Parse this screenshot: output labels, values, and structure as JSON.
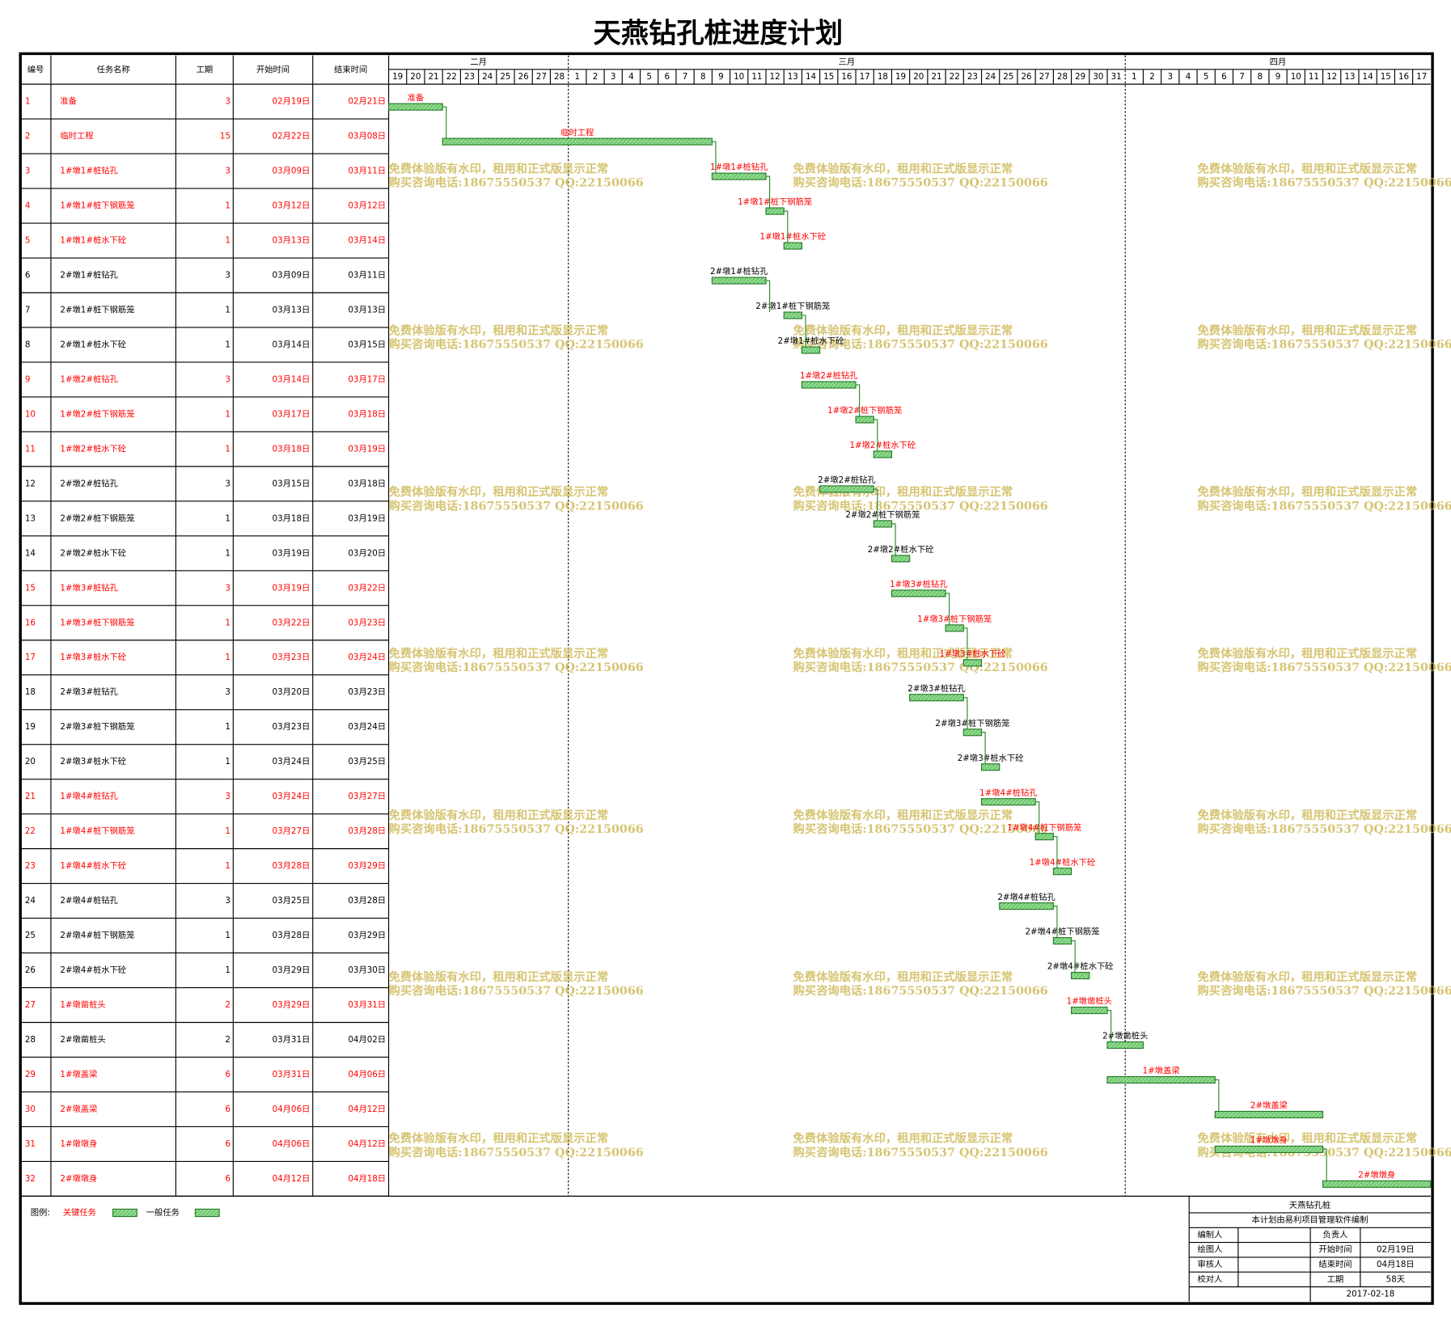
{
  "title": "天燕钻孔桩进度计划",
  "table_header": {
    "number": "编号",
    "name": "任务名称",
    "duration": "工期",
    "start": "开始时间",
    "end": "结束时间"
  },
  "timeline": {
    "months": [
      {
        "label": "二月",
        "days": [
          19,
          20,
          21,
          22,
          23,
          24,
          25,
          26,
          27,
          28
        ]
      },
      {
        "label": "三月",
        "days": [
          1,
          2,
          3,
          4,
          5,
          6,
          7,
          8,
          9,
          10,
          11,
          12,
          13,
          14,
          15,
          16,
          17,
          18,
          19,
          20,
          21,
          22,
          23,
          24,
          25,
          26,
          27,
          28,
          29,
          30,
          31
        ]
      },
      {
        "label": "四月",
        "days": [
          1,
          2,
          3,
          4,
          5,
          6,
          7,
          8,
          9,
          10,
          11,
          12,
          13,
          14,
          15,
          16,
          17
        ]
      }
    ]
  },
  "tasks": [
    {
      "number": 1,
      "name": "准备",
      "duration": 3,
      "start": "02月19日",
      "end": "02月21日",
      "critical": true
    },
    {
      "number": 2,
      "name": "临时工程",
      "duration": 15,
      "start": "02月22日",
      "end": "03月08日",
      "critical": true
    },
    {
      "number": 3,
      "name": "1#墩1#桩钻孔",
      "duration": 3,
      "start": "03月09日",
      "end": "03月11日",
      "critical": true
    },
    {
      "number": 4,
      "name": "1#墩1#桩下钢筋笼",
      "duration": 1,
      "start": "03月12日",
      "end": "03月12日",
      "critical": true
    },
    {
      "number": 5,
      "name": "1#墩1#桩水下砼",
      "duration": 1,
      "start": "03月13日",
      "end": "03月14日",
      "critical": true
    },
    {
      "number": 6,
      "name": "2#墩1#桩钻孔",
      "duration": 3,
      "start": "03月09日",
      "end": "03月11日",
      "critical": false
    },
    {
      "number": 7,
      "name": "2#墩1#桩下钢筋笼",
      "duration": 1,
      "start": "03月13日",
      "end": "03月13日",
      "critical": false
    },
    {
      "number": 8,
      "name": "2#墩1#桩水下砼",
      "duration": 1,
      "start": "03月14日",
      "end": "03月15日",
      "critical": false
    },
    {
      "number": 9,
      "name": "1#墩2#桩钻孔",
      "duration": 3,
      "start": "03月14日",
      "end": "03月17日",
      "critical": true
    },
    {
      "number": 10,
      "name": "1#墩2#桩下钢筋笼",
      "duration": 1,
      "start": "03月17日",
      "end": "03月18日",
      "critical": true
    },
    {
      "number": 11,
      "name": "1#墩2#桩水下砼",
      "duration": 1,
      "start": "03月18日",
      "end": "03月19日",
      "critical": true
    },
    {
      "number": 12,
      "name": "2#墩2#桩钻孔",
      "duration": 3,
      "start": "03月15日",
      "end": "03月18日",
      "critical": false
    },
    {
      "number": 13,
      "name": "2#墩2#桩下钢筋笼",
      "duration": 1,
      "start": "03月18日",
      "end": "03月19日",
      "critical": false
    },
    {
      "number": 14,
      "name": "2#墩2#桩水下砼",
      "duration": 1,
      "start": "03月19日",
      "end": "03月20日",
      "critical": false
    },
    {
      "number": 15,
      "name": "1#墩3#桩钻孔",
      "duration": 3,
      "start": "03月19日",
      "end": "03月22日",
      "critical": true
    },
    {
      "number": 16,
      "name": "1#墩3#桩下钢筋笼",
      "duration": 1,
      "start": "03月22日",
      "end": "03月23日",
      "critical": true
    },
    {
      "number": 17,
      "name": "1#墩3#桩水下砼",
      "duration": 1,
      "start": "03月23日",
      "end": "03月24日",
      "critical": true
    },
    {
      "number": 18,
      "name": "2#墩3#桩钻孔",
      "duration": 3,
      "start": "03月20日",
      "end": "03月23日",
      "critical": false
    },
    {
      "number": 19,
      "name": "2#墩3#桩下钢筋笼",
      "duration": 1,
      "start": "03月23日",
      "end": "03月24日",
      "critical": false
    },
    {
      "number": 20,
      "name": "2#墩3#桩水下砼",
      "duration": 1,
      "start": "03月24日",
      "end": "03月25日",
      "critical": false
    },
    {
      "number": 21,
      "name": "1#墩4#桩钻孔",
      "duration": 3,
      "start": "03月24日",
      "end": "03月27日",
      "critical": true
    },
    {
      "number": 22,
      "name": "1#墩4#桩下钢筋笼",
      "duration": 1,
      "start": "03月27日",
      "end": "03月28日",
      "critical": true
    },
    {
      "number": 23,
      "name": "1#墩4#桩水下砼",
      "duration": 1,
      "start": "03月28日",
      "end": "03月29日",
      "critical": true
    },
    {
      "number": 24,
      "name": "2#墩4#桩钻孔",
      "duration": 3,
      "start": "03月25日",
      "end": "03月28日",
      "critical": false
    },
    {
      "number": 25,
      "name": "2#墩4#桩下钢筋笼",
      "duration": 1,
      "start": "03月28日",
      "end": "03月29日",
      "critical": false
    },
    {
      "number": 26,
      "name": "2#墩4#桩水下砼",
      "duration": 1,
      "start": "03月29日",
      "end": "03月30日",
      "critical": false
    },
    {
      "number": 27,
      "name": "1#墩凿桩头",
      "duration": 2,
      "start": "03月29日",
      "end": "03月31日",
      "critical": true
    },
    {
      "number": 28,
      "name": "2#墩凿桩头",
      "duration": 2,
      "start": "03月31日",
      "end": "04月02日",
      "critical": false
    },
    {
      "number": 29,
      "name": "1#墩盖梁",
      "duration": 6,
      "start": "03月31日",
      "end": "04月06日",
      "critical": true
    },
    {
      "number": 30,
      "name": "2#墩盖梁",
      "duration": 6,
      "start": "04月06日",
      "end": "04月12日",
      "critical": true
    },
    {
      "number": 31,
      "name": "1#墩墩身",
      "duration": 6,
      "start": "04月06日",
      "end": "04月12日",
      "critical": true
    },
    {
      "number": 32,
      "name": "2#墩墩身",
      "duration": 6,
      "start": "04月12日",
      "end": "04月18日",
      "critical": true
    }
  ],
  "watermark": [
    "免费体验版有水印，租用和正式版显示正常",
    "购买咨询电话:18675550537 QQ:22150066"
  ],
  "legend": {
    "label": "图例:",
    "critical": "关键任务",
    "normal": "一般任务"
  },
  "title_block": {
    "project": "天燕钻孔桩",
    "note": "本计划由易利项目管理软件编制",
    "rows": [
      {
        "left": "编制人",
        "right": "负责人"
      },
      {
        "left": "绘图人",
        "right": "开始时间",
        "right_value": "02月19日"
      },
      {
        "left": "审核人",
        "right": "结束时间",
        "right_value": "04月18日"
      },
      {
        "left": "校对人",
        "right": "工期",
        "right_value": "58天"
      }
    ],
    "date": "2017-02-18"
  },
  "colors": {
    "critical": "#ff0000",
    "normal": "#000000",
    "bar": "#7ccf7c",
    "bar_border": "#2a7a2a",
    "watermark": "#d6c472",
    "link": "#2a8a2a"
  }
}
